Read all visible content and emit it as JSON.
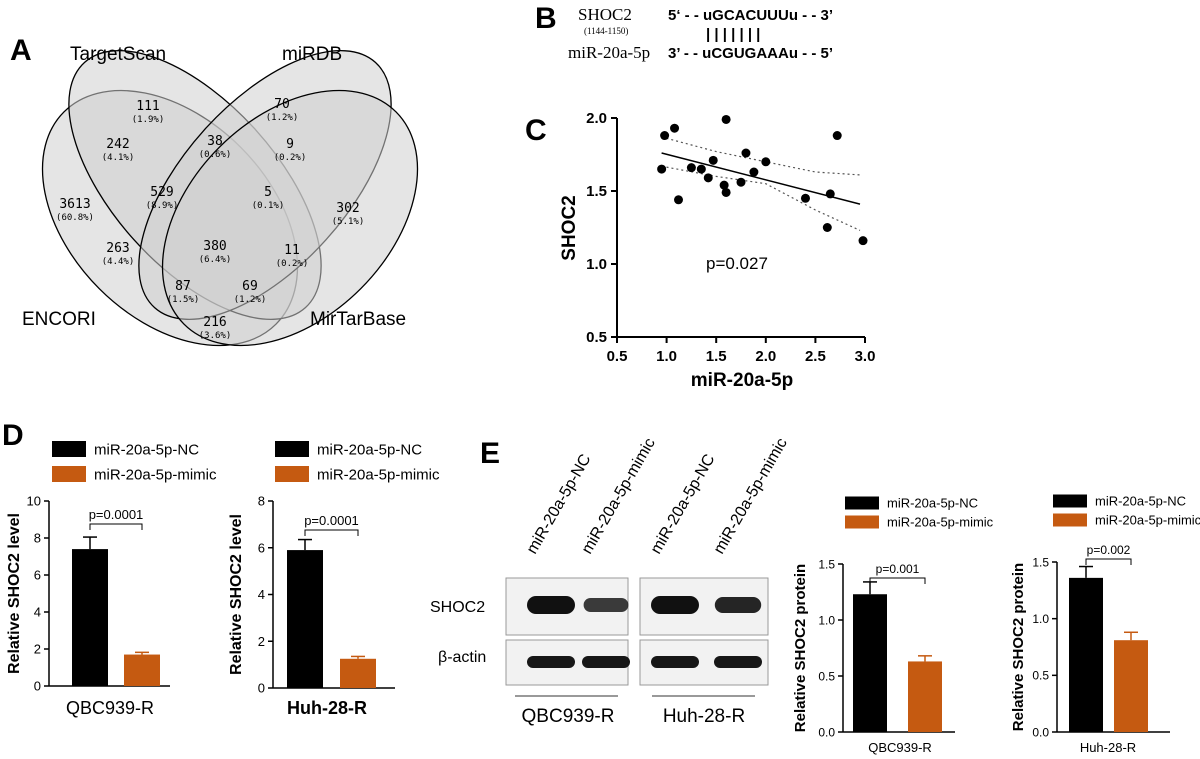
{
  "panels": {
    "a": "A",
    "b": "B",
    "c": "C",
    "d": "D",
    "e": "E"
  },
  "venn": {
    "set_labels": {
      "targetscan": "TargetScan",
      "mirdb": "miRDB",
      "encori": "ENCORI",
      "mirtarbase": "MirTarBase"
    },
    "regions": {
      "encori_only": {
        "count": "3613",
        "pct": "(60.8%)"
      },
      "targetscan_only": {
        "count": "111",
        "pct": "(1.9%)"
      },
      "mirdb_only": {
        "count": "70",
        "pct": "(1.2%)"
      },
      "mirtarbase_only": {
        "count": "302",
        "pct": "(5.1%)"
      },
      "encori_targetscan": {
        "count": "242",
        "pct": "(4.1%)"
      },
      "targetscan_mirdb": {
        "count": "38",
        "pct": "(0.6%)"
      },
      "mirdb_mirtarbase": {
        "count": "9",
        "pct": "(0.2%)"
      },
      "encori_targetscan_mirdb": {
        "count": "529",
        "pct": "(8.9%)"
      },
      "targetscan_mirdb_mirtarbase": {
        "count": "5",
        "pct": "(0.1%)"
      },
      "all_four": {
        "count": "380",
        "pct": "(6.4%)"
      },
      "encori_targetscan_mirtarbase": {
        "count": "263",
        "pct": "(4.4%)"
      },
      "encori_mirdb_mirtarbase": {
        "count": "11",
        "pct": "(0.2%)"
      },
      "encori_targetscan_mirtarbase_b": {
        "count": "87",
        "pct": "(1.5%)"
      },
      "mirdb_mirtarbase_encori": {
        "count": "69",
        "pct": "(1.2%)"
      },
      "encori_mirtarbase": {
        "count": "216",
        "pct": "(3.6%)"
      }
    }
  },
  "binding": {
    "gene": "SHOC2",
    "position": "(1144-1150)",
    "gene_seq": "5‘ - - uGCACUUUu - - 3’",
    "pairs": "| | | | | | |",
    "mirna": "miR-20a-5p",
    "mirna_seq": "3’ - - uCGUGAAAu - - 5’"
  },
  "colors": {
    "nc_bar": "#000000",
    "mimic_bar": "#c55a11",
    "venn_fill": "#d3d3d3",
    "venn_stroke": "#000000"
  },
  "chart_data": [
    {
      "type": "scatter",
      "xlabel": "miR-20a-5p",
      "ylabel": "SHOC2",
      "xlim": [
        0.5,
        3.0
      ],
      "ylim": [
        0.5,
        2.0
      ],
      "xticks": [
        "0.5",
        "1.0",
        "1.5",
        "2.0",
        "2.5",
        "3.0"
      ],
      "yticks": [
        "0.5",
        "1.0",
        "1.5",
        "2.0"
      ],
      "annotation": "p=0.027",
      "points": [
        [
          0.95,
          1.65
        ],
        [
          0.98,
          1.88
        ],
        [
          1.08,
          1.93
        ],
        [
          1.12,
          1.44
        ],
        [
          1.25,
          1.66
        ],
        [
          1.35,
          1.65
        ],
        [
          1.42,
          1.59
        ],
        [
          1.47,
          1.71
        ],
        [
          1.58,
          1.54
        ],
        [
          1.6,
          1.49
        ],
        [
          1.6,
          1.99
        ],
        [
          1.75,
          1.56
        ],
        [
          1.8,
          1.76
        ],
        [
          1.88,
          1.63
        ],
        [
          2.0,
          1.7
        ],
        [
          2.4,
          1.45
        ],
        [
          2.62,
          1.25
        ],
        [
          2.65,
          1.48
        ],
        [
          2.72,
          1.88
        ],
        [
          2.98,
          1.16
        ]
      ],
      "fit_line": [
        [
          0.95,
          1.76
        ],
        [
          2.95,
          1.41
        ]
      ],
      "ci_upper": [
        [
          0.95,
          1.87
        ],
        [
          1.5,
          1.77
        ],
        [
          2.0,
          1.7
        ],
        [
          2.5,
          1.63
        ],
        [
          2.95,
          1.61
        ]
      ],
      "ci_lower": [
        [
          0.95,
          1.67
        ],
        [
          1.5,
          1.6
        ],
        [
          2.0,
          1.55
        ],
        [
          2.5,
          1.37
        ],
        [
          2.95,
          1.23
        ]
      ]
    },
    {
      "type": "bar",
      "title": "QBC939-R",
      "ylabel": "Relative SHOC2 level",
      "ylim": [
        0,
        10
      ],
      "yticks": [
        "0",
        "2",
        "4",
        "6",
        "8",
        "10"
      ],
      "categories": [
        "miR-20a-5p-NC",
        "miR-20a-5p-mimic"
      ],
      "values": [
        7.4,
        1.7
      ],
      "errors": [
        0.65,
        0.12
      ],
      "pvalue": "p=0.0001",
      "legend": [
        "miR-20a-5p-NC",
        "miR-20a-5p-mimic"
      ]
    },
    {
      "type": "bar",
      "title": "Huh-28-R",
      "ylabel": "Relative SHOC2 level",
      "ylim": [
        0,
        8
      ],
      "yticks": [
        "0",
        "2",
        "4",
        "6",
        "8"
      ],
      "categories": [
        "miR-20a-5p-NC",
        "miR-20a-5p-mimic"
      ],
      "values": [
        5.9,
        1.25
      ],
      "errors": [
        0.45,
        0.1
      ],
      "pvalue": "p=0.0001",
      "legend": [
        "miR-20a-5p-NC",
        "miR-20a-5p-mimic"
      ]
    },
    {
      "type": "bar",
      "title": "QBC939-R",
      "ylabel": "Relative SHOC2 protein",
      "ylim": [
        0,
        1.5
      ],
      "yticks": [
        "0.0",
        "0.5",
        "1.0",
        "1.5"
      ],
      "categories": [
        "miR-20a-5p-NC",
        "miR-20a-5p-mimic"
      ],
      "values": [
        1.23,
        0.63
      ],
      "errors": [
        0.11,
        0.05
      ],
      "pvalue": "p=0.001",
      "legend": [
        "miR-20a-5p-NC",
        "miR-20a-5p-mimic"
      ]
    },
    {
      "type": "bar",
      "title": "Huh-28-R",
      "ylabel": "Relative SHOC2 protein",
      "ylim": [
        0,
        1.5
      ],
      "yticks": [
        "0.0",
        "0.5",
        "1.0",
        "1.5"
      ],
      "categories": [
        "miR-20a-5p-NC",
        "miR-20a-5p-mimic"
      ],
      "values": [
        1.36,
        0.81
      ],
      "errors": [
        0.1,
        0.07
      ],
      "pvalue": "p=0.002",
      "legend": [
        "miR-20a-5p-NC",
        "miR-20a-5p-mimic"
      ]
    }
  ],
  "western": {
    "lanes": [
      "miR-20a-5p-NC",
      "miR-20a-5p-mimic",
      "miR-20a-5p-NC",
      "miR-20a-5p-mimic"
    ],
    "row_labels": [
      "SHOC2",
      "β-actin"
    ],
    "groups": [
      "QBC939-R",
      "Huh-28-R"
    ],
    "band_intensity": {
      "shoc2": [
        1.0,
        0.6,
        1.0,
        0.8
      ],
      "actin": [
        0.95,
        0.95,
        0.95,
        0.95
      ]
    }
  }
}
